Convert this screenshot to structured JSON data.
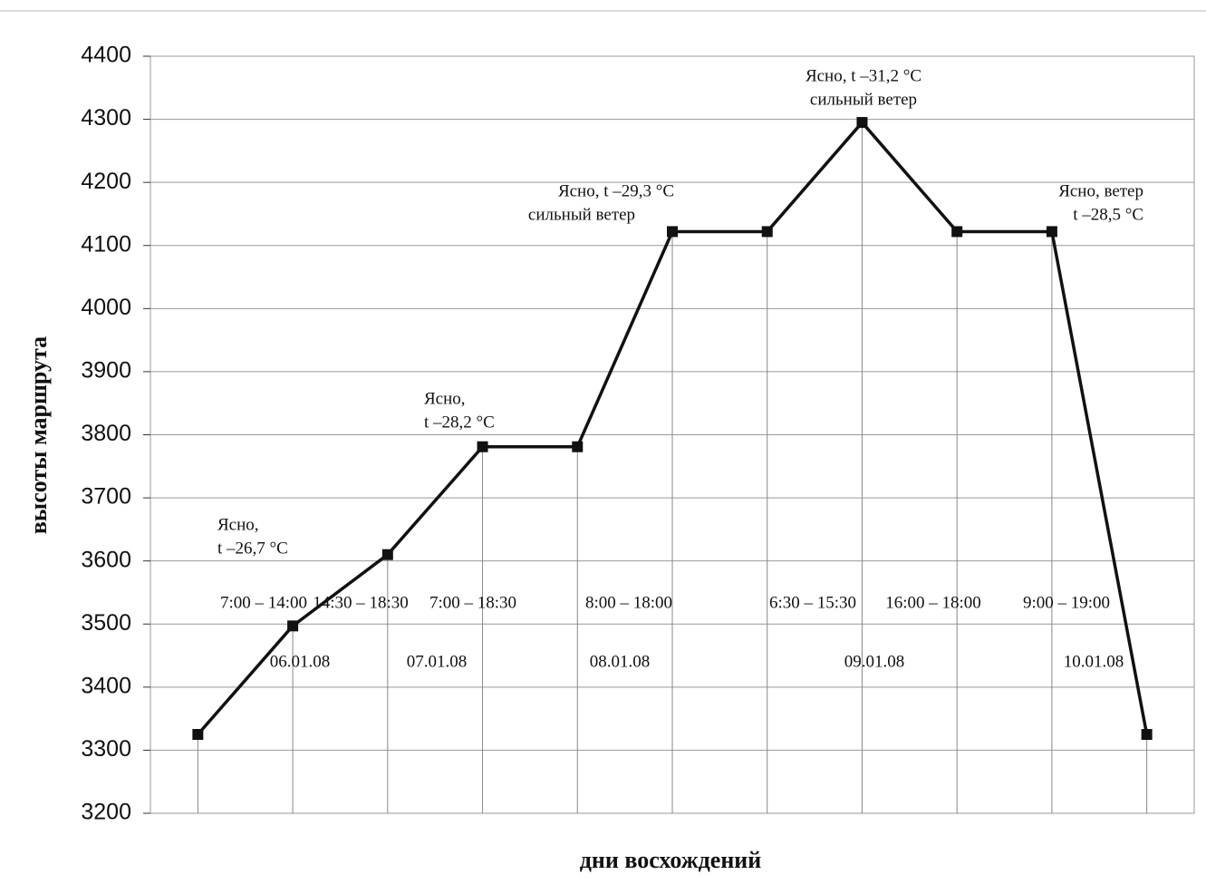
{
  "chart_data": {
    "type": "line",
    "y_axis_label": "высоты маршрута",
    "x_axis_label": "дни восхождений",
    "categories": [
      null,
      null,
      null,
      null,
      null,
      null,
      null,
      null,
      null,
      null,
      null
    ],
    "series": [
      {
        "name": null,
        "color": "#111111",
        "values": [
          3325,
          3497,
          3610,
          3781,
          3781,
          4122,
          4122,
          4295,
          4122,
          4122,
          3325
        ]
      }
    ],
    "ylim": [
      3200,
      4400
    ],
    "yticks": [
      3200,
      3300,
      3400,
      3500,
      3600,
      3700,
      3800,
      3900,
      4000,
      4100,
      4200,
      4300,
      4400
    ],
    "grid": true,
    "time_labels": [
      "7:00 – 14:00",
      "14:30 – 18:30",
      "7:00 – 18:30",
      "8:00 – 18:00",
      "6:30 – 15:30",
      "16:00 – 18:00",
      "9:00 – 19:00"
    ],
    "date_labels": [
      "06.01.08",
      "07.01.08",
      "08.01.08",
      "09.01.08",
      "10.01.08"
    ],
    "annotations": [
      [
        "Ясно,",
        "t –26,7 °C"
      ],
      [
        "Ясно,",
        "t –28,2 °C"
      ],
      [
        "Ясно,  t –29,3 °C",
        "сильный  ветер"
      ],
      [
        "Ясно, t –31,2 °C",
        "сильный ветер"
      ],
      [
        "Ясно, ветер",
        "t –28,5 °C"
      ]
    ]
  }
}
